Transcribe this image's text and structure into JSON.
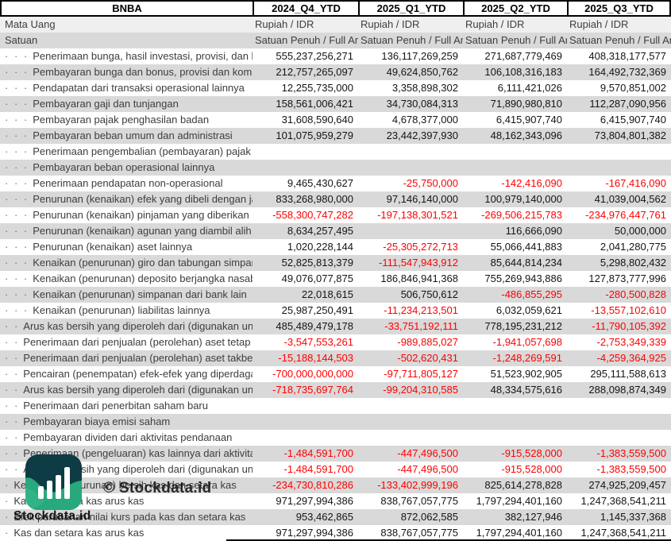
{
  "table": {
    "company": "BNBA",
    "columns": [
      "2024_Q4_YTD",
      "2025_Q1_YTD",
      "2025_Q2_YTD",
      "2025_Q3_YTD"
    ],
    "currency_row": {
      "label": "Mata Uang",
      "values": [
        "Rupiah / IDR",
        "Rupiah / IDR",
        "Rupiah / IDR",
        "Rupiah / IDR"
      ]
    },
    "unit_row": {
      "label": "Satuan",
      "values": [
        "Satuan Penuh / Full Amount",
        "Satuan Penuh / Full Amount",
        "Satuan Penuh / Full Amount",
        "Satuan Penuh / Full Amount"
      ]
    },
    "rows": [
      {
        "dots": "· · ·",
        "label": "Penerimaan bunga, hasil investasi, provisi, dan komisi",
        "values": [
          "555,237,256,271",
          "136,117,269,259",
          "271,687,779,469",
          "408,318,177,577"
        ]
      },
      {
        "dots": "· · ·",
        "label": "Pembayaran bunga dan bonus, provisi dan komisi",
        "values": [
          "212,757,265,097",
          "49,624,850,762",
          "106,108,316,183",
          "164,492,732,369"
        ]
      },
      {
        "dots": "· · ·",
        "label": "Pendapatan dari transaksi operasional lainnya",
        "values": [
          "12,255,735,000",
          "3,358,898,302",
          "6,111,421,026",
          "9,570,851,002"
        ]
      },
      {
        "dots": "· · ·",
        "label": "Pembayaran gaji dan tunjangan",
        "values": [
          "158,561,006,421",
          "34,730,084,313",
          "71,890,980,810",
          "112,287,090,956"
        ]
      },
      {
        "dots": "· · ·",
        "label": "Pembayaran pajak penghasilan badan",
        "values": [
          "31,608,590,640",
          "4,678,377,000",
          "6,415,907,740",
          "6,415,907,740"
        ]
      },
      {
        "dots": "· · ·",
        "label": "Pembayaran beban umum dan administrasi",
        "values": [
          "101,075,959,279",
          "23,442,397,930",
          "48,162,343,096",
          "73,804,801,382"
        ]
      },
      {
        "dots": "· · ·",
        "label": "Penerimaan pengembalian (pembayaran) pajak penghasilan",
        "values": [
          "",
          "",
          "",
          ""
        ]
      },
      {
        "dots": "· · ·",
        "label": "Pembayaran beban operasional lainnya",
        "values": [
          "",
          "",
          "",
          ""
        ]
      },
      {
        "dots": "· · ·",
        "label": "Penerimaan pendapatan non-operasional",
        "values": [
          "9,465,430,627",
          "-25,750,000",
          "-142,416,090",
          "-167,416,090"
        ]
      },
      {
        "dots": "· · ·",
        "label": "Penurunan (kenaikan) efek yang dibeli dengan janji dijual kembali",
        "values": [
          "833,268,980,000",
          "97,146,140,000",
          "100,979,140,000",
          "41,039,004,562"
        ]
      },
      {
        "dots": "· · ·",
        "label": "Penurunan (kenaikan) pinjaman yang diberikan",
        "values": [
          "-558,300,747,282",
          "-197,138,301,521",
          "-269,506,215,783",
          "-234,976,447,761"
        ]
      },
      {
        "dots": "· · ·",
        "label": "Penurunan (kenaikan) agunan yang diambil alih",
        "values": [
          "8,634,257,495",
          "",
          "116,666,090",
          "50,000,000"
        ]
      },
      {
        "dots": "· · ·",
        "label": "Penurunan (kenaikan) aset lainnya",
        "values": [
          "1,020,228,144",
          "-25,305,272,713",
          "55,066,441,883",
          "2,041,280,775"
        ]
      },
      {
        "dots": "· · ·",
        "label": "Kenaikan (penurunan) giro dan tabungan simpanan nasabah",
        "values": [
          "52,825,813,379",
          "-111,547,943,912",
          "85,644,814,234",
          "5,298,802,432"
        ]
      },
      {
        "dots": "· · ·",
        "label": "Kenaikan (penurunan) deposito berjangka nasabah",
        "values": [
          "49,076,077,875",
          "186,846,941,368",
          "755,269,943,886",
          "127,873,777,996"
        ]
      },
      {
        "dots": "· · ·",
        "label": "Kenaikan (penurunan) simpanan dari bank lain",
        "values": [
          "22,018,615",
          "506,750,612",
          "-486,855,295",
          "-280,500,828"
        ]
      },
      {
        "dots": "· · ·",
        "label": "Kenaikan (penurunan) liabilitas lainnya",
        "values": [
          "25,987,250,491",
          "-11,234,213,501",
          "6,032,059,621",
          "-13,557,102,610"
        ]
      },
      {
        "dots": "· ·",
        "label": "Arus kas bersih yang diperoleh dari (digunakan untuk) aktivitas operasi",
        "values": [
          "485,489,479,178",
          "-33,751,192,111",
          "778,195,231,212",
          "-11,790,105,392"
        ]
      },
      {
        "dots": "· ·",
        "label": "Penerimaan dari penjualan (perolehan) aset tetap",
        "values": [
          "-3,547,553,261",
          "-989,885,027",
          "-1,941,057,698",
          "-2,753,349,339"
        ]
      },
      {
        "dots": "· ·",
        "label": "Penerimaan dari penjualan (perolehan) aset takberwujud",
        "values": [
          "-15,188,144,503",
          "-502,620,431",
          "-1,248,269,591",
          "-4,259,364,925"
        ]
      },
      {
        "dots": "· ·",
        "label": "Pencairan (penempatan) efek-efek yang diperdagangkan",
        "values": [
          "-700,000,000,000",
          "-97,711,805,127",
          "51,523,902,905",
          "295,111,588,613"
        ]
      },
      {
        "dots": "· ·",
        "label": "Arus kas bersih yang diperoleh dari (digunakan untuk) aktivitas investasi",
        "values": [
          "-718,735,697,764",
          "-99,204,310,585",
          "48,334,575,616",
          "288,098,874,349"
        ]
      },
      {
        "dots": "· ·",
        "label": "Penerimaan dari penerbitan saham baru",
        "values": [
          "",
          "",
          "",
          ""
        ]
      },
      {
        "dots": "· ·",
        "label": "Pembayaran biaya emisi saham",
        "values": [
          "",
          "",
          "",
          ""
        ]
      },
      {
        "dots": "· ·",
        "label": "Pembayaran dividen dari aktivitas pendanaan",
        "values": [
          "",
          "",
          "",
          ""
        ]
      },
      {
        "dots": "· ·",
        "label": "Penerimaan (pengeluaran) kas lainnya dari aktivitas pendanaan",
        "values": [
          "-1,484,591,700",
          "-447,496,500",
          "-915,528,000",
          "-1,383,559,500"
        ]
      },
      {
        "dots": "· ·",
        "label": "Arus kas bersih yang diperoleh dari (digunakan untuk) aktivitas pendanaan",
        "values": [
          "-1,484,591,700",
          "-447,496,500",
          "-915,528,000",
          "-1,383,559,500"
        ]
      },
      {
        "dots": "·",
        "label": "Kenaikan (penurunan) bersih kas dan setara kas",
        "values": [
          "-234,730,810,286",
          "-133,402,999,196",
          "825,614,278,828",
          "274,925,209,457"
        ]
      },
      {
        "dots": "·",
        "label": "Kas dan setara kas arus kas",
        "values": [
          "971,297,994,386",
          "838,767,057,775",
          "1,797,294,401,160",
          "1,247,368,541,211"
        ]
      },
      {
        "dots": "·",
        "label": "Efek perubahan nilai kurs pada kas dan setara kas",
        "values": [
          "953,462,865",
          "872,062,585",
          "382,127,946",
          "1,145,337,368"
        ]
      },
      {
        "dots": "·",
        "label": "Kas dan setara kas arus kas",
        "values": [
          "971,297,994,386",
          "838,767,057,775",
          "1,797,294,401,160",
          "1,247,368,541,211"
        ]
      }
    ]
  },
  "watermark": {
    "copyright": "© Stockdata.id",
    "brand": "Stockdata.id",
    "logo": "stockdata-bar-chart-logo"
  },
  "colors": {
    "negative": "#ff0000",
    "stripe_gray": "#d9d9d9",
    "currency_row_gray": "#efefef",
    "logo_teal": "#0e3c44",
    "logo_green": "#28a87d"
  }
}
